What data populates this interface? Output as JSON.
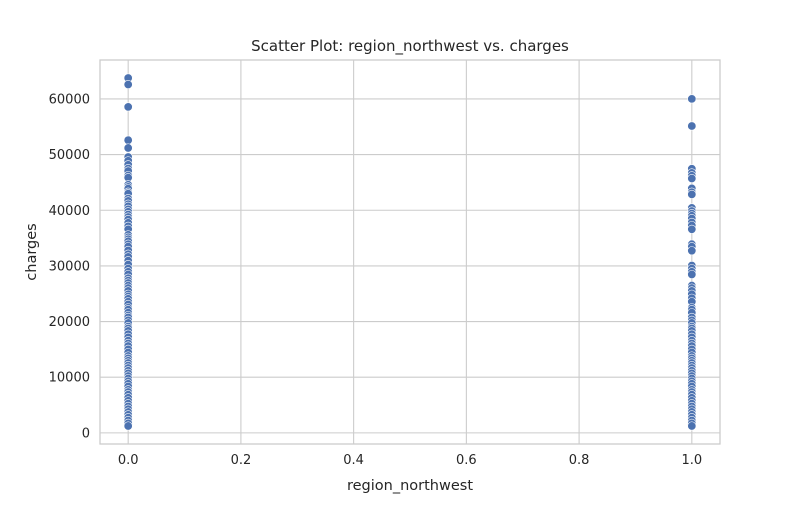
{
  "chart_data": {
    "type": "scatter",
    "title": "Scatter Plot: region_northwest vs. charges",
    "xlabel": "region_northwest",
    "ylabel": "charges",
    "xlim": [
      -0.05,
      1.05
    ],
    "ylim": [
      -2000,
      67000
    ],
    "xticks": [
      0.0,
      0.2,
      0.4,
      0.6,
      0.8,
      1.0
    ],
    "xtick_labels": [
      "0.0",
      "0.2",
      "0.4",
      "0.6",
      "0.8",
      "1.0"
    ],
    "yticks": [
      0,
      10000,
      20000,
      30000,
      40000,
      50000,
      60000
    ],
    "ytick_labels": [
      "0",
      "10000",
      "20000",
      "30000",
      "40000",
      "50000",
      "60000"
    ],
    "grid": true,
    "point_color": "#4c72b0",
    "series": [
      {
        "points": [
          [
            0,
            63770
          ],
          [
            0,
            62593
          ],
          [
            0,
            58571
          ],
          [
            0,
            52590
          ],
          [
            0,
            51195
          ],
          [
            0,
            49577
          ],
          [
            0,
            48885
          ],
          [
            0,
            48173
          ],
          [
            0,
            47496
          ],
          [
            0,
            47055
          ],
          [
            0,
            46255
          ],
          [
            0,
            45863
          ],
          [
            0,
            44585
          ],
          [
            0,
            44202
          ],
          [
            0,
            43896
          ],
          [
            0,
            43254
          ],
          [
            0,
            42983
          ],
          [
            0,
            42112
          ],
          [
            0,
            41676
          ],
          [
            0,
            41097
          ],
          [
            0,
            40720
          ],
          [
            0,
            40182
          ],
          [
            0,
            39725
          ],
          [
            0,
            39241
          ],
          [
            0,
            38792
          ],
          [
            0,
            38344
          ],
          [
            0,
            37742
          ],
          [
            0,
            37133
          ],
          [
            0,
            36580
          ],
          [
            0,
            35585
          ],
          [
            0,
            35160
          ],
          [
            0,
            34806
          ],
          [
            0,
            34439
          ],
          [
            0,
            33907
          ],
          [
            0,
            33475
          ],
          [
            0,
            32787
          ],
          [
            0,
            32108
          ],
          [
            0,
            31620
          ],
          [
            0,
            30942
          ],
          [
            0,
            30260
          ],
          [
            0,
            29523
          ],
          [
            0,
            28950
          ],
          [
            0,
            28468
          ],
          [
            0,
            27808
          ],
          [
            0,
            27346
          ],
          [
            0,
            26926
          ],
          [
            0,
            26467
          ],
          [
            0,
            26018
          ],
          [
            0,
            25517
          ],
          [
            0,
            24915
          ],
          [
            0,
            24513
          ],
          [
            0,
            24106
          ],
          [
            0,
            23568
          ],
          [
            0,
            23082
          ],
          [
            0,
            22493
          ],
          [
            0,
            22144
          ],
          [
            0,
            21595
          ],
          [
            0,
            21098
          ],
          [
            0,
            20745
          ],
          [
            0,
            20234
          ],
          [
            0,
            19749
          ],
          [
            0,
            19107
          ],
          [
            0,
            18767
          ],
          [
            0,
            18328
          ],
          [
            0,
            17748
          ],
          [
            0,
            17179
          ],
          [
            0,
            16577
          ],
          [
            0,
            16085
          ],
          [
            0,
            15612
          ],
          [
            0,
            15019
          ],
          [
            0,
            14452
          ],
          [
            0,
            13822
          ],
          [
            0,
            13405
          ],
          [
            0,
            12950
          ],
          [
            0,
            12557
          ],
          [
            0,
            12105
          ],
          [
            0,
            11658
          ],
          [
            0,
            11165
          ],
          [
            0,
            10705
          ],
          [
            0,
            10214
          ],
          [
            0,
            9778
          ],
          [
            0,
            9283
          ],
          [
            0,
            8824
          ],
          [
            0,
            8342
          ],
          [
            0,
            7742
          ],
          [
            0,
            7345
          ],
          [
            0,
            6875
          ],
          [
            0,
            6313
          ],
          [
            0,
            5759
          ],
          [
            0,
            5246
          ],
          [
            0,
            4766
          ],
          [
            0,
            4260
          ],
          [
            0,
            3757
          ],
          [
            0,
            3258
          ],
          [
            0,
            2742
          ],
          [
            0,
            2226
          ],
          [
            0,
            1725
          ],
          [
            0,
            1242
          ],
          [
            1,
            60021
          ],
          [
            1,
            55135
          ],
          [
            1,
            47462
          ],
          [
            1,
            46718
          ],
          [
            1,
            46200
          ],
          [
            1,
            45710
          ],
          [
            1,
            43921
          ],
          [
            1,
            43254
          ],
          [
            1,
            42856
          ],
          [
            1,
            40419
          ],
          [
            1,
            39871
          ],
          [
            1,
            39411
          ],
          [
            1,
            38998
          ],
          [
            1,
            38511
          ],
          [
            1,
            37829
          ],
          [
            1,
            37270
          ],
          [
            1,
            36580
          ],
          [
            1,
            33900
          ],
          [
            1,
            33471
          ],
          [
            1,
            32734
          ],
          [
            1,
            30063
          ],
          [
            1,
            29523
          ],
          [
            1,
            28950
          ],
          [
            1,
            28468
          ],
          [
            1,
            26467
          ],
          [
            1,
            26018
          ],
          [
            1,
            25517
          ],
          [
            1,
            24915
          ],
          [
            1,
            24200
          ],
          [
            1,
            23568
          ],
          [
            1,
            22493
          ],
          [
            1,
            22144
          ],
          [
            1,
            21595
          ],
          [
            1,
            20745
          ],
          [
            1,
            20234
          ],
          [
            1,
            19749
          ],
          [
            1,
            19107
          ],
          [
            1,
            18767
          ],
          [
            1,
            18328
          ],
          [
            1,
            17748
          ],
          [
            1,
            17179
          ],
          [
            1,
            16577
          ],
          [
            1,
            16085
          ],
          [
            1,
            15612
          ],
          [
            1,
            15019
          ],
          [
            1,
            14452
          ],
          [
            1,
            13822
          ],
          [
            1,
            13405
          ],
          [
            1,
            12950
          ],
          [
            1,
            12557
          ],
          [
            1,
            12105
          ],
          [
            1,
            11658
          ],
          [
            1,
            11165
          ],
          [
            1,
            10705
          ],
          [
            1,
            10214
          ],
          [
            1,
            9778
          ],
          [
            1,
            9283
          ],
          [
            1,
            8824
          ],
          [
            1,
            8342
          ],
          [
            1,
            7742
          ],
          [
            1,
            7345
          ],
          [
            1,
            6875
          ],
          [
            1,
            6313
          ],
          [
            1,
            5759
          ],
          [
            1,
            5246
          ],
          [
            1,
            4766
          ],
          [
            1,
            4260
          ],
          [
            1,
            3757
          ],
          [
            1,
            3258
          ],
          [
            1,
            2742
          ],
          [
            1,
            2226
          ],
          [
            1,
            1725
          ],
          [
            1,
            1242
          ]
        ]
      }
    ]
  }
}
